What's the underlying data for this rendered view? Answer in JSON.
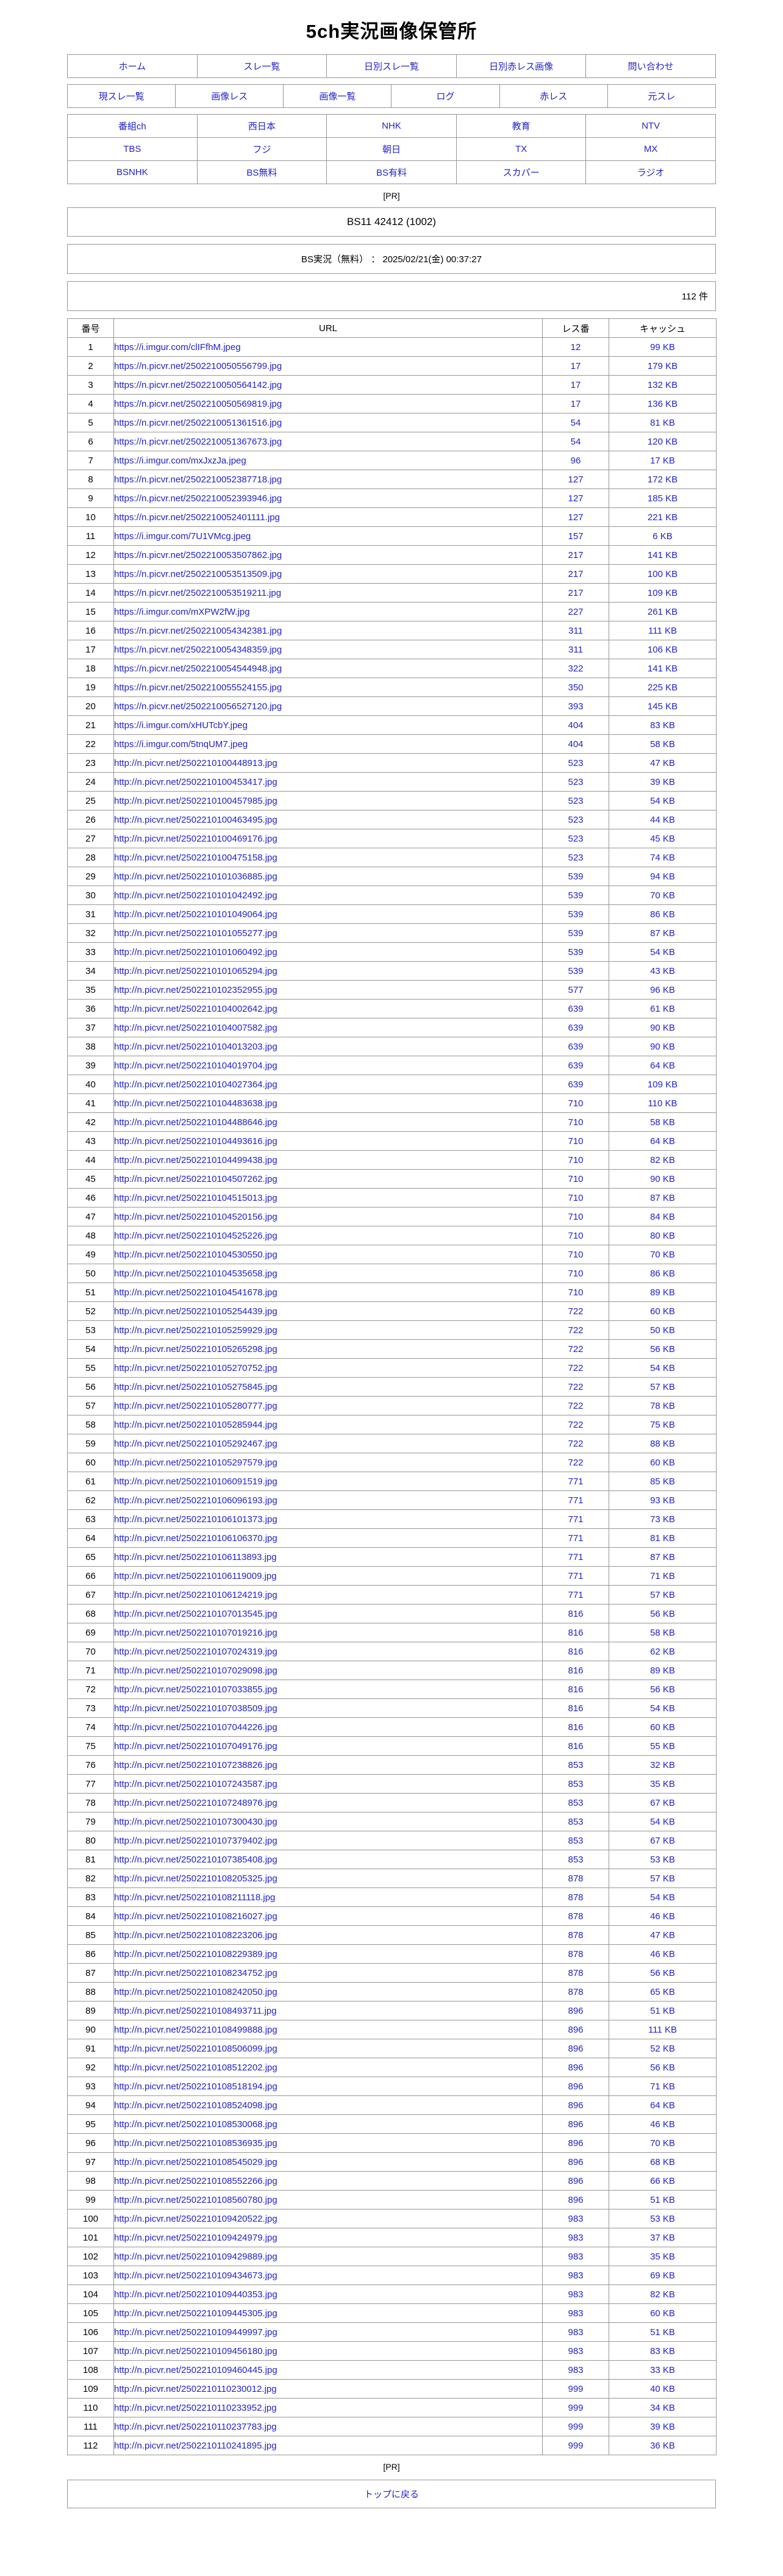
{
  "page": {
    "title": "5ch実況画像保管所",
    "pr_label": "[PR]",
    "thread_title": "BS11 42412 (1002)",
    "board_info": "BS実況（無料） ： 2025/02/21(金) 00:37:27",
    "count_label": "112 件",
    "back_to_top": "トップに戻る"
  },
  "nav": {
    "row1": [
      "ホーム",
      "スレ一覧",
      "日別スレ一覧",
      "日別赤レス画像",
      "問い合わせ"
    ],
    "row2": [
      "現スレ一覧",
      "画像レス",
      "画像一覧",
      "ログ",
      "赤レス",
      "元スレ"
    ],
    "channels": [
      [
        "番組ch",
        "西日本",
        "NHK",
        "教育",
        "NTV"
      ],
      [
        "TBS",
        "フジ",
        "朝日",
        "TX",
        "MX"
      ],
      [
        "BSNHK",
        "BS無料",
        "BS有料",
        "スカパー",
        "ラジオ"
      ]
    ]
  },
  "table": {
    "headers": [
      "番号",
      "URL",
      "レス番",
      "キャッシュ"
    ],
    "rows": [
      [
        "1",
        "https://i.imgur.com/clIFfhM.jpeg",
        "12",
        "99 KB"
      ],
      [
        "2",
        "https://n.picvr.net/2502210050556799.jpg",
        "17",
        "179 KB"
      ],
      [
        "3",
        "https://n.picvr.net/2502210050564142.jpg",
        "17",
        "132 KB"
      ],
      [
        "4",
        "https://n.picvr.net/2502210050569819.jpg",
        "17",
        "136 KB"
      ],
      [
        "5",
        "https://n.picvr.net/2502210051361516.jpg",
        "54",
        "81 KB"
      ],
      [
        "6",
        "https://n.picvr.net/2502210051367673.jpg",
        "54",
        "120 KB"
      ],
      [
        "7",
        "https://i.imgur.com/mxJxzJa.jpeg",
        "96",
        "17 KB"
      ],
      [
        "8",
        "https://n.picvr.net/2502210052387718.jpg",
        "127",
        "172 KB"
      ],
      [
        "9",
        "https://n.picvr.net/2502210052393946.jpg",
        "127",
        "185 KB"
      ],
      [
        "10",
        "https://n.picvr.net/2502210052401111.jpg",
        "127",
        "221 KB"
      ],
      [
        "11",
        "https://i.imgur.com/7U1VMcg.jpeg",
        "157",
        "6 KB"
      ],
      [
        "12",
        "https://n.picvr.net/2502210053507862.jpg",
        "217",
        "141 KB"
      ],
      [
        "13",
        "https://n.picvr.net/2502210053513509.jpg",
        "217",
        "100 KB"
      ],
      [
        "14",
        "https://n.picvr.net/2502210053519211.jpg",
        "217",
        "109 KB"
      ],
      [
        "15",
        "https://i.imgur.com/mXPW2fW.jpg",
        "227",
        "261 KB"
      ],
      [
        "16",
        "https://n.picvr.net/2502210054342381.jpg",
        "311",
        "111 KB"
      ],
      [
        "17",
        "https://n.picvr.net/2502210054348359.jpg",
        "311",
        "106 KB"
      ],
      [
        "18",
        "https://n.picvr.net/2502210054544948.jpg",
        "322",
        "141 KB"
      ],
      [
        "19",
        "https://n.picvr.net/2502210055524155.jpg",
        "350",
        "225 KB"
      ],
      [
        "20",
        "https://n.picvr.net/2502210056527120.jpg",
        "393",
        "145 KB"
      ],
      [
        "21",
        "https://i.imgur.com/xHUTcbY.jpeg",
        "404",
        "83 KB"
      ],
      [
        "22",
        "https://i.imgur.com/5tnqUM7.jpeg",
        "404",
        "58 KB"
      ],
      [
        "23",
        "http://n.picvr.net/2502210100448913.jpg",
        "523",
        "47 KB"
      ],
      [
        "24",
        "http://n.picvr.net/2502210100453417.jpg",
        "523",
        "39 KB"
      ],
      [
        "25",
        "http://n.picvr.net/2502210100457985.jpg",
        "523",
        "54 KB"
      ],
      [
        "26",
        "http://n.picvr.net/2502210100463495.jpg",
        "523",
        "44 KB"
      ],
      [
        "27",
        "http://n.picvr.net/2502210100469176.jpg",
        "523",
        "45 KB"
      ],
      [
        "28",
        "http://n.picvr.net/2502210100475158.jpg",
        "523",
        "74 KB"
      ],
      [
        "29",
        "http://n.picvr.net/2502210101036885.jpg",
        "539",
        "94 KB"
      ],
      [
        "30",
        "http://n.picvr.net/2502210101042492.jpg",
        "539",
        "70 KB"
      ],
      [
        "31",
        "http://n.picvr.net/2502210101049064.jpg",
        "539",
        "86 KB"
      ],
      [
        "32",
        "http://n.picvr.net/2502210101055277.jpg",
        "539",
        "87 KB"
      ],
      [
        "33",
        "http://n.picvr.net/2502210101060492.jpg",
        "539",
        "54 KB"
      ],
      [
        "34",
        "http://n.picvr.net/2502210101065294.jpg",
        "539",
        "43 KB"
      ],
      [
        "35",
        "http://n.picvr.net/2502210102352955.jpg",
        "577",
        "96 KB"
      ],
      [
        "36",
        "http://n.picvr.net/2502210104002642.jpg",
        "639",
        "61 KB"
      ],
      [
        "37",
        "http://n.picvr.net/2502210104007582.jpg",
        "639",
        "90 KB"
      ],
      [
        "38",
        "http://n.picvr.net/2502210104013203.jpg",
        "639",
        "90 KB"
      ],
      [
        "39",
        "http://n.picvr.net/2502210104019704.jpg",
        "639",
        "64 KB"
      ],
      [
        "40",
        "http://n.picvr.net/2502210104027364.jpg",
        "639",
        "109 KB"
      ],
      [
        "41",
        "http://n.picvr.net/2502210104483638.jpg",
        "710",
        "110 KB"
      ],
      [
        "42",
        "http://n.picvr.net/2502210104488646.jpg",
        "710",
        "58 KB"
      ],
      [
        "43",
        "http://n.picvr.net/2502210104493616.jpg",
        "710",
        "64 KB"
      ],
      [
        "44",
        "http://n.picvr.net/2502210104499438.jpg",
        "710",
        "82 KB"
      ],
      [
        "45",
        "http://n.picvr.net/2502210104507262.jpg",
        "710",
        "90 KB"
      ],
      [
        "46",
        "http://n.picvr.net/2502210104515013.jpg",
        "710",
        "87 KB"
      ],
      [
        "47",
        "http://n.picvr.net/2502210104520156.jpg",
        "710",
        "84 KB"
      ],
      [
        "48",
        "http://n.picvr.net/2502210104525226.jpg",
        "710",
        "80 KB"
      ],
      [
        "49",
        "http://n.picvr.net/2502210104530550.jpg",
        "710",
        "70 KB"
      ],
      [
        "50",
        "http://n.picvr.net/2502210104535658.jpg",
        "710",
        "86 KB"
      ],
      [
        "51",
        "http://n.picvr.net/2502210104541678.jpg",
        "710",
        "89 KB"
      ],
      [
        "52",
        "http://n.picvr.net/2502210105254439.jpg",
        "722",
        "60 KB"
      ],
      [
        "53",
        "http://n.picvr.net/2502210105259929.jpg",
        "722",
        "50 KB"
      ],
      [
        "54",
        "http://n.picvr.net/2502210105265298.jpg",
        "722",
        "56 KB"
      ],
      [
        "55",
        "http://n.picvr.net/2502210105270752.jpg",
        "722",
        "54 KB"
      ],
      [
        "56",
        "http://n.picvr.net/2502210105275845.jpg",
        "722",
        "57 KB"
      ],
      [
        "57",
        "http://n.picvr.net/2502210105280777.jpg",
        "722",
        "78 KB"
      ],
      [
        "58",
        "http://n.picvr.net/2502210105285944.jpg",
        "722",
        "75 KB"
      ],
      [
        "59",
        "http://n.picvr.net/2502210105292467.jpg",
        "722",
        "88 KB"
      ],
      [
        "60",
        "http://n.picvr.net/2502210105297579.jpg",
        "722",
        "60 KB"
      ],
      [
        "61",
        "http://n.picvr.net/2502210106091519.jpg",
        "771",
        "85 KB"
      ],
      [
        "62",
        "http://n.picvr.net/2502210106096193.jpg",
        "771",
        "93 KB"
      ],
      [
        "63",
        "http://n.picvr.net/2502210106101373.jpg",
        "771",
        "73 KB"
      ],
      [
        "64",
        "http://n.picvr.net/2502210106106370.jpg",
        "771",
        "81 KB"
      ],
      [
        "65",
        "http://n.picvr.net/2502210106113893.jpg",
        "771",
        "87 KB"
      ],
      [
        "66",
        "http://n.picvr.net/2502210106119009.jpg",
        "771",
        "71 KB"
      ],
      [
        "67",
        "http://n.picvr.net/2502210106124219.jpg",
        "771",
        "57 KB"
      ],
      [
        "68",
        "http://n.picvr.net/2502210107013545.jpg",
        "816",
        "56 KB"
      ],
      [
        "69",
        "http://n.picvr.net/2502210107019216.jpg",
        "816",
        "58 KB"
      ],
      [
        "70",
        "http://n.picvr.net/2502210107024319.jpg",
        "816",
        "62 KB"
      ],
      [
        "71",
        "http://n.picvr.net/2502210107029098.jpg",
        "816",
        "89 KB"
      ],
      [
        "72",
        "http://n.picvr.net/2502210107033855.jpg",
        "816",
        "56 KB"
      ],
      [
        "73",
        "http://n.picvr.net/2502210107038509.jpg",
        "816",
        "54 KB"
      ],
      [
        "74",
        "http://n.picvr.net/2502210107044226.jpg",
        "816",
        "60 KB"
      ],
      [
        "75",
        "http://n.picvr.net/2502210107049176.jpg",
        "816",
        "55 KB"
      ],
      [
        "76",
        "http://n.picvr.net/2502210107238826.jpg",
        "853",
        "32 KB"
      ],
      [
        "77",
        "http://n.picvr.net/2502210107243587.jpg",
        "853",
        "35 KB"
      ],
      [
        "78",
        "http://n.picvr.net/2502210107248976.jpg",
        "853",
        "67 KB"
      ],
      [
        "79",
        "http://n.picvr.net/2502210107300430.jpg",
        "853",
        "54 KB"
      ],
      [
        "80",
        "http://n.picvr.net/2502210107379402.jpg",
        "853",
        "67 KB"
      ],
      [
        "81",
        "http://n.picvr.net/2502210107385408.jpg",
        "853",
        "53 KB"
      ],
      [
        "82",
        "http://n.picvr.net/2502210108205325.jpg",
        "878",
        "57 KB"
      ],
      [
        "83",
        "http://n.picvr.net/2502210108211118.jpg",
        "878",
        "54 KB"
      ],
      [
        "84",
        "http://n.picvr.net/2502210108216027.jpg",
        "878",
        "46 KB"
      ],
      [
        "85",
        "http://n.picvr.net/2502210108223206.jpg",
        "878",
        "47 KB"
      ],
      [
        "86",
        "http://n.picvr.net/2502210108229389.jpg",
        "878",
        "46 KB"
      ],
      [
        "87",
        "http://n.picvr.net/2502210108234752.jpg",
        "878",
        "56 KB"
      ],
      [
        "88",
        "http://n.picvr.net/2502210108242050.jpg",
        "878",
        "65 KB"
      ],
      [
        "89",
        "http://n.picvr.net/2502210108493711.jpg",
        "896",
        "51 KB"
      ],
      [
        "90",
        "http://n.picvr.net/2502210108499888.jpg",
        "896",
        "111 KB"
      ],
      [
        "91",
        "http://n.picvr.net/2502210108506099.jpg",
        "896",
        "52 KB"
      ],
      [
        "92",
        "http://n.picvr.net/2502210108512202.jpg",
        "896",
        "56 KB"
      ],
      [
        "93",
        "http://n.picvr.net/2502210108518194.jpg",
        "896",
        "71 KB"
      ],
      [
        "94",
        "http://n.picvr.net/2502210108524098.jpg",
        "896",
        "64 KB"
      ],
      [
        "95",
        "http://n.picvr.net/2502210108530068.jpg",
        "896",
        "46 KB"
      ],
      [
        "96",
        "http://n.picvr.net/2502210108536935.jpg",
        "896",
        "70 KB"
      ],
      [
        "97",
        "http://n.picvr.net/2502210108545029.jpg",
        "896",
        "68 KB"
      ],
      [
        "98",
        "http://n.picvr.net/2502210108552266.jpg",
        "896",
        "66 KB"
      ],
      [
        "99",
        "http://n.picvr.net/2502210108560780.jpg",
        "896",
        "51 KB"
      ],
      [
        "100",
        "http://n.picvr.net/2502210109420522.jpg",
        "983",
        "53 KB"
      ],
      [
        "101",
        "http://n.picvr.net/2502210109424979.jpg",
        "983",
        "37 KB"
      ],
      [
        "102",
        "http://n.picvr.net/2502210109429889.jpg",
        "983",
        "35 KB"
      ],
      [
        "103",
        "http://n.picvr.net/2502210109434673.jpg",
        "983",
        "69 KB"
      ],
      [
        "104",
        "http://n.picvr.net/2502210109440353.jpg",
        "983",
        "82 KB"
      ],
      [
        "105",
        "http://n.picvr.net/2502210109445305.jpg",
        "983",
        "60 KB"
      ],
      [
        "106",
        "http://n.picvr.net/2502210109449997.jpg",
        "983",
        "51 KB"
      ],
      [
        "107",
        "http://n.picvr.net/2502210109456180.jpg",
        "983",
        "83 KB"
      ],
      [
        "108",
        "http://n.picvr.net/2502210109460445.jpg",
        "983",
        "33 KB"
      ],
      [
        "109",
        "http://n.picvr.net/2502210110230012.jpg",
        "999",
        "40 KB"
      ],
      [
        "110",
        "http://n.picvr.net/2502210110233952.jpg",
        "999",
        "34 KB"
      ],
      [
        "111",
        "http://n.picvr.net/2502210110237783.jpg",
        "999",
        "39 KB"
      ],
      [
        "112",
        "http://n.picvr.net/2502210110241895.jpg",
        "999",
        "36 KB"
      ]
    ]
  },
  "colors": {
    "link_blue": "#2222cc",
    "border_gray": "#969696",
    "text_black": "#000000",
    "background": "#ffffff"
  }
}
